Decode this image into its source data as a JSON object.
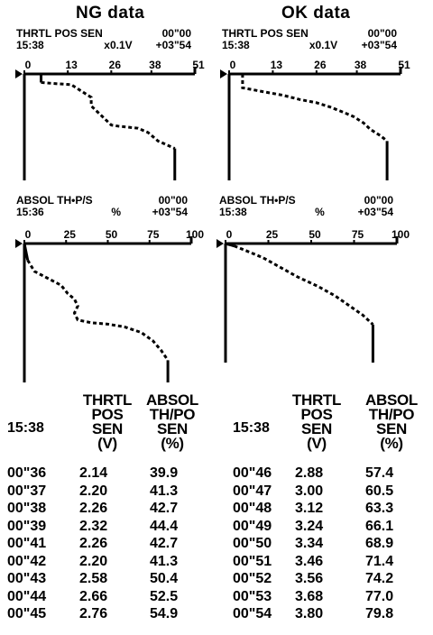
{
  "panels": [
    {
      "title": "NG data",
      "top_chart": {
        "name_line": "THRTL  POS  SEN",
        "unit": "x0.1V",
        "time_start": "00\"00",
        "clock": "15:38",
        "time_range": "+03\"54",
        "ticks": [
          "0",
          "13",
          "26",
          "38",
          "51"
        ]
      },
      "bottom_chart": {
        "name_line": "ABSOL  TH•P/S",
        "unit": "%",
        "time_start": "00\"00",
        "clock": "15:36",
        "time_range": "+03\"54",
        "ticks": [
          "0",
          "25",
          "50",
          "75",
          "100"
        ]
      },
      "table": {
        "clock": "15:38",
        "col1_header": [
          "THRTL",
          "POS",
          "SEN",
          "(V)"
        ],
        "col2_header": [
          "ABSOL",
          "TH/PO",
          "SEN",
          "(%)"
        ],
        "rows": [
          {
            "t": "00\"36",
            "v": "2.14",
            "p": "39.9"
          },
          {
            "t": "00\"37",
            "v": "2.20",
            "p": "41.3"
          },
          {
            "t": "00\"38",
            "v": "2.26",
            "p": "42.7"
          },
          {
            "t": "00\"39",
            "v": "2.32",
            "p": "44.4"
          },
          {
            "t": "00\"41",
            "v": "2.26",
            "p": "42.7"
          },
          {
            "t": "00\"42",
            "v": "2.20",
            "p": "41.3"
          },
          {
            "t": "00\"43",
            "v": "2.58",
            "p": "50.4"
          },
          {
            "t": "00\"44",
            "v": "2.66",
            "p": "52.5"
          },
          {
            "t": "00\"45",
            "v": "2.76",
            "p": "54.9"
          }
        ]
      }
    },
    {
      "title": "OK data",
      "top_chart": {
        "name_line": "THRTL  POS  SEN",
        "unit": "x0.1V",
        "time_start": "00\"00",
        "clock": "15:38",
        "time_range": "+03\"54",
        "ticks": [
          "0",
          "13",
          "26",
          "38",
          "51"
        ]
      },
      "bottom_chart": {
        "name_line": "ABSOL  TH•P/S",
        "unit": "%",
        "time_start": "00\"00",
        "clock": "15:38",
        "time_range": "+03\"54",
        "ticks": [
          "0",
          "25",
          "50",
          "75",
          "100"
        ]
      },
      "table": {
        "clock": "15:38",
        "col1_header": [
          "THRTL",
          "POS",
          "SEN",
          "(V)"
        ],
        "col2_header": [
          "ABSOL",
          "TH/PO",
          "SEN",
          "(%)"
        ],
        "rows": [
          {
            "t": "00\"46",
            "v": "2.88",
            "p": "57.4"
          },
          {
            "t": "00\"47",
            "v": "3.00",
            "p": "60.5"
          },
          {
            "t": "00\"48",
            "v": "3.12",
            "p": "63.3"
          },
          {
            "t": "00\"49",
            "v": "3.24",
            "p": "66.1"
          },
          {
            "t": "00\"50",
            "v": "3.34",
            "p": "68.9"
          },
          {
            "t": "00\"51",
            "v": "3.46",
            "p": "71.4"
          },
          {
            "t": "00\"52",
            "v": "3.56",
            "p": "74.2"
          },
          {
            "t": "00\"53",
            "v": "3.68",
            "p": "77.0"
          },
          {
            "t": "00\"54",
            "v": "3.80",
            "p": "79.8"
          }
        ]
      }
    }
  ],
  "chart_data": [
    {
      "type": "line",
      "panel": "NG data",
      "ylabel": "THRTL POS SEN",
      "unit": "x0.1V",
      "xlim": [
        0,
        51
      ],
      "ticks": [
        0,
        13,
        26,
        38,
        51
      ],
      "series": [
        {
          "x": [
            5,
            5,
            9,
            14,
            17,
            20,
            20,
            24,
            26,
            28,
            31,
            34,
            37,
            40,
            45,
            45
          ],
          "y": [
            0,
            8,
            9,
            10,
            16,
            22,
            30,
            42,
            48,
            49,
            50,
            51,
            55,
            63,
            70,
            100
          ]
        }
      ]
    },
    {
      "type": "line",
      "panel": "NG data",
      "ylabel": "ABSOL TH•P/S",
      "unit": "%",
      "xlim": [
        0,
        100
      ],
      "ticks": [
        0,
        25,
        50,
        75,
        100
      ],
      "series": [
        {
          "x": [
            0,
            2,
            6,
            14,
            22,
            26,
            30,
            32,
            30,
            32,
            40,
            50,
            60,
            70,
            77,
            82,
            86,
            86
          ],
          "y": [
            0,
            12,
            20,
            25,
            30,
            36,
            40,
            45,
            50,
            55,
            57,
            58,
            60,
            64,
            70,
            77,
            84,
            100
          ]
        }
      ]
    },
    {
      "type": "line",
      "panel": "OK data",
      "ylabel": "THRTL POS SEN",
      "unit": "x0.1V",
      "xlim": [
        0,
        51
      ],
      "ticks": [
        0,
        13,
        26,
        38,
        51
      ],
      "series": [
        {
          "x": [
            0,
            4,
            4,
            9,
            16,
            21,
            26,
            30,
            34,
            37,
            40,
            42,
            45,
            47,
            47
          ],
          "y": [
            0,
            0,
            13,
            16,
            20,
            24,
            27,
            31,
            36,
            40,
            46,
            52,
            58,
            63,
            100
          ]
        }
      ]
    },
    {
      "type": "line",
      "panel": "OK data",
      "ylabel": "ABSOL TH•P/S",
      "unit": "%",
      "xlim": [
        0,
        100
      ],
      "ticks": [
        0,
        25,
        50,
        75,
        100
      ],
      "series": [
        {
          "x": [
            0,
            5,
            12,
            22,
            32,
            42,
            54,
            64,
            72,
            80,
            86,
            86
          ],
          "y": [
            0,
            2,
            6,
            12,
            20,
            28,
            36,
            44,
            52,
            60,
            68,
            100
          ]
        }
      ]
    }
  ]
}
